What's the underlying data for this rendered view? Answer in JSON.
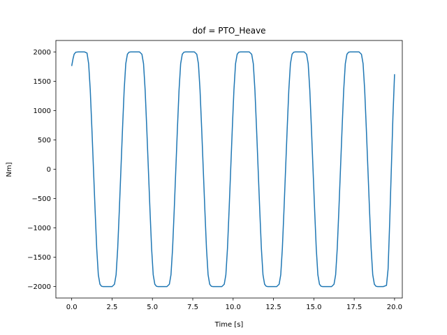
{
  "chart_data": {
    "type": "line",
    "title": "dof = PTO_Heave",
    "xlabel": "Time [s]",
    "ylabel": "Nm]",
    "xlim": [
      -0.98,
      20.48
    ],
    "ylim": [
      -2195,
      2195
    ],
    "xticks": [
      0.0,
      2.5,
      5.0,
      7.5,
      10.0,
      12.5,
      15.0,
      17.5,
      20.0
    ],
    "xtick_labels": [
      "0.0",
      "2.5",
      "5.0",
      "7.5",
      "10.0",
      "12.5",
      "15.0",
      "17.5",
      "20.0"
    ],
    "yticks": [
      -2000,
      -1500,
      -1000,
      -500,
      0,
      500,
      1000,
      1500,
      2000
    ],
    "ytick_labels": [
      "−2000",
      "−1500",
      "−1000",
      "−500",
      "0",
      "500",
      "1000",
      "1500",
      "2000"
    ],
    "grid": false,
    "line_color": "#1f77b4",
    "series": [
      {
        "x": [
          0.0,
          0.08,
          0.15,
          0.25,
          0.4,
          0.6,
          0.8,
          0.95,
          1.05,
          1.15,
          1.25,
          1.35,
          1.45,
          1.55,
          1.65,
          1.75,
          1.85,
          1.95,
          2.1,
          2.3,
          2.5,
          2.65,
          2.75,
          2.85,
          2.95,
          3.05,
          3.15,
          3.25,
          3.35,
          3.45,
          3.55,
          3.65,
          3.8,
          4.0,
          4.2,
          4.35,
          4.45,
          4.55,
          4.65,
          4.75,
          4.85,
          4.95,
          5.05,
          5.15,
          5.25,
          5.35,
          5.5,
          5.7,
          5.9,
          6.05,
          6.15,
          6.25,
          6.35,
          6.45,
          6.55,
          6.65,
          6.75,
          6.85,
          6.95,
          7.05,
          7.2,
          7.4,
          7.6,
          7.75,
          7.85,
          7.95,
          8.05,
          8.15,
          8.25,
          8.35,
          8.45,
          8.55,
          8.65,
          8.75,
          8.9,
          9.1,
          9.3,
          9.45,
          9.55,
          9.65,
          9.75,
          9.85,
          9.95,
          10.05,
          10.15,
          10.25,
          10.35,
          10.45,
          10.6,
          10.8,
          11.0,
          11.15,
          11.25,
          11.35,
          11.45,
          11.55,
          11.65,
          11.75,
          11.85,
          11.95,
          12.05,
          12.15,
          12.3,
          12.5,
          12.7,
          12.85,
          12.95,
          13.05,
          13.15,
          13.25,
          13.35,
          13.45,
          13.55,
          13.65,
          13.75,
          13.85,
          14.0,
          14.2,
          14.4,
          14.55,
          14.65,
          14.75,
          14.85,
          14.95,
          15.05,
          15.15,
          15.25,
          15.35,
          15.45,
          15.55,
          15.7,
          15.9,
          16.1,
          16.25,
          16.35,
          16.45,
          16.55,
          16.65,
          16.75,
          16.85,
          16.95,
          17.05,
          17.15,
          17.25,
          17.4,
          17.6,
          17.8,
          17.95,
          18.05,
          18.15,
          18.25,
          18.35,
          18.45,
          18.55,
          18.65,
          18.75,
          18.85,
          18.95,
          19.1,
          19.3,
          19.5,
          19.6,
          19.7,
          19.8,
          19.9,
          20.0
        ],
        "values": [
          1760,
          1880,
          1960,
          1995,
          2000,
          2000,
          2000,
          1980,
          1800,
          1350,
          700,
          0,
          -700,
          -1350,
          -1800,
          -1960,
          -1995,
          -2000,
          -2000,
          -2000,
          -2000,
          -1960,
          -1800,
          -1350,
          -700,
          0,
          700,
          1350,
          1800,
          1960,
          1995,
          2000,
          2000,
          2000,
          2000,
          1960,
          1800,
          1350,
          700,
          0,
          -700,
          -1350,
          -1800,
          -1960,
          -1995,
          -2000,
          -2000,
          -2000,
          -2000,
          -1960,
          -1800,
          -1350,
          -700,
          0,
          700,
          1350,
          1800,
          1960,
          1995,
          2000,
          2000,
          2000,
          2000,
          1960,
          1800,
          1350,
          700,
          0,
          -700,
          -1350,
          -1800,
          -1960,
          -1995,
          -2000,
          -2000,
          -2000,
          -2000,
          -1960,
          -1800,
          -1350,
          -700,
          0,
          700,
          1350,
          1800,
          1960,
          1995,
          2000,
          2000,
          2000,
          2000,
          1960,
          1800,
          1350,
          700,
          0,
          -700,
          -1350,
          -1800,
          -1960,
          -1995,
          -2000,
          -2000,
          -2000,
          -2000,
          -1960,
          -1800,
          -1350,
          -700,
          0,
          700,
          1350,
          1800,
          1960,
          1995,
          2000,
          2000,
          2000,
          2000,
          1960,
          1800,
          1350,
          700,
          0,
          -700,
          -1350,
          -1800,
          -1960,
          -1995,
          -2000,
          -2000,
          -2000,
          -2000,
          -1960,
          -1800,
          -1350,
          -700,
          0,
          700,
          1350,
          1800,
          1960,
          1995,
          2000,
          2000,
          2000,
          2000,
          1960,
          1800,
          1350,
          700,
          0,
          -700,
          -1350,
          -1800,
          -1960,
          -1995,
          -2000,
          -2000,
          -2000,
          -1980,
          -1700,
          -900,
          0,
          900,
          1620
        ]
      }
    ]
  }
}
